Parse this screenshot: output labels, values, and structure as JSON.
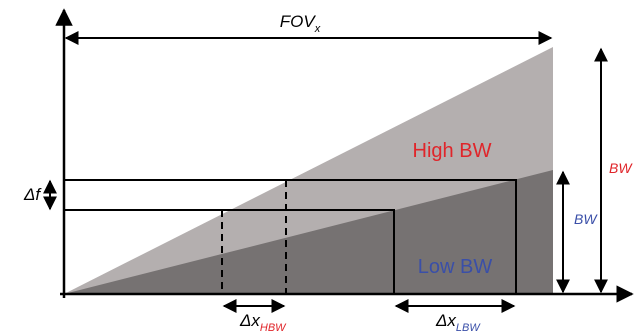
{
  "labels": {
    "fov": {
      "main": "FOV",
      "sub": "x"
    },
    "high_bw": "High BW",
    "low_bw": "Low BW",
    "bw_outer": "BW",
    "bw_inner": "BW",
    "delta_f": "Δf",
    "dx_hbw": {
      "main": "Δx",
      "sub": "HBW"
    },
    "dx_lbw": {
      "main": "Δx",
      "sub": "LBW"
    }
  },
  "colors": {
    "high_region": "#b4afaf",
    "low_region": "#767272",
    "high_label": "#e0252a",
    "low_label": "#3a4fa8",
    "bw_outer": "#e0252a",
    "bw_inner": "#3a4fa8",
    "lines": "#000000"
  }
}
